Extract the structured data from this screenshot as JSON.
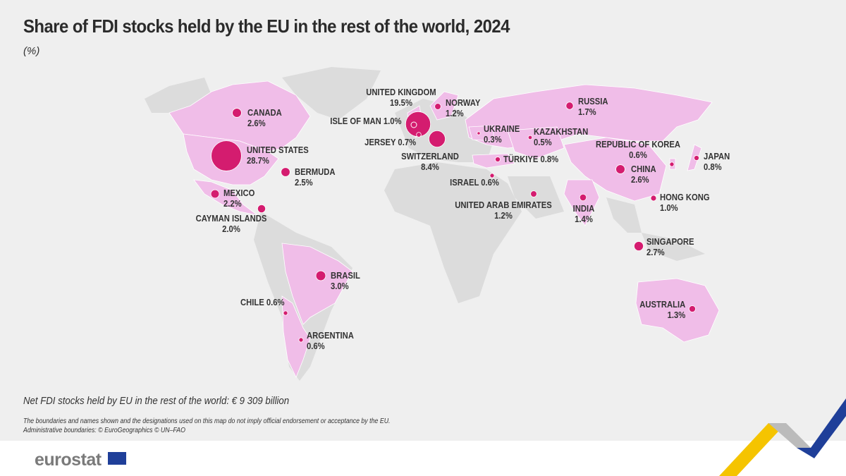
{
  "title": "Share of FDI stocks held by the EU in the rest of the world, 2024",
  "unit": "(%)",
  "footer": {
    "net": "Net FDI stocks held by EU in the rest of the world: € 9 309 billion",
    "disclaimer": "The boundaries and names shown and the designations used on this map do not imply official endorsement or acceptance by the EU.",
    "sources": "Administrative boundaries: © EuroGeographics © UN–FAO",
    "logo": "eurostat"
  },
  "colors": {
    "background": "#efefef",
    "land": "#dcdcdc",
    "highlight": "#f0bde8",
    "bubble": "#d41c6f"
  },
  "map_data": {
    "type": "proportional-symbol map",
    "countries": [
      {
        "name": "CANADA",
        "value": "2.6%"
      },
      {
        "name": "UNITED STATES",
        "value": "28.7%"
      },
      {
        "name": "BERMUDA",
        "value": "2.5%"
      },
      {
        "name": "MEXICO",
        "value": "2.2%"
      },
      {
        "name": "CAYMAN ISLANDS",
        "value": "2.0%"
      },
      {
        "name": "BRASIL",
        "value": "3.0%"
      },
      {
        "name": "CHILE",
        "value": "0.6%"
      },
      {
        "name": "ARGENTINA",
        "value": "0.6%"
      },
      {
        "name": "UNITED KINGDOM",
        "value": "19.5%"
      },
      {
        "name": "ISLE OF MAN",
        "value": "1.0%"
      },
      {
        "name": "JERSEY",
        "value": "0.7%"
      },
      {
        "name": "SWITZERLAND",
        "value": "8.4%"
      },
      {
        "name": "NORWAY",
        "value": "1.2%"
      },
      {
        "name": "UKRAINE",
        "value": "0.3%"
      },
      {
        "name": "KAZAKHSTAN",
        "value": "0.5%"
      },
      {
        "name": "TÜRKIYE",
        "value": "0.8%"
      },
      {
        "name": "ISRAEL",
        "value": "0.6%"
      },
      {
        "name": "UNITED ARAB EMIRATES",
        "value": "1.2%"
      },
      {
        "name": "RUSSIA",
        "value": "1.7%"
      },
      {
        "name": "REPUBLIC OF KOREA",
        "value": "0.6%"
      },
      {
        "name": "JAPAN",
        "value": "0.8%"
      },
      {
        "name": "CHINA",
        "value": "2.6%"
      },
      {
        "name": "HONG KONG",
        "value": "1.0%"
      },
      {
        "name": "INDIA",
        "value": "1.4%"
      },
      {
        "name": "SINGAPORE",
        "value": "2.7%"
      },
      {
        "name": "AUSTRALIA",
        "value": "1.3%"
      }
    ]
  }
}
